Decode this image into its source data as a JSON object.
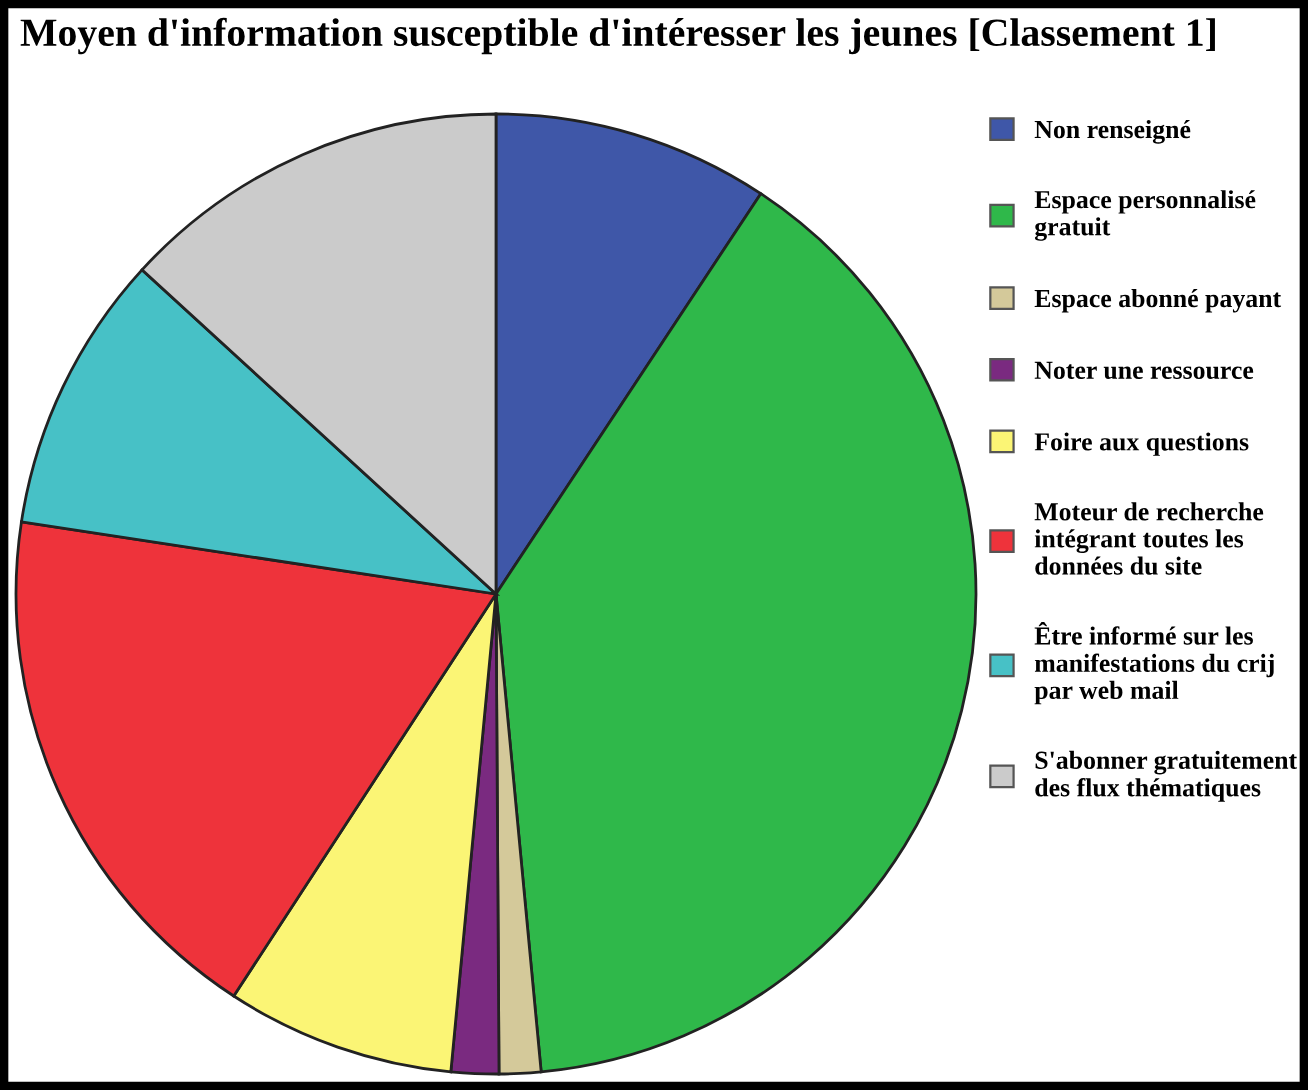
{
  "chart_data": {
    "type": "pie",
    "title": "Moyen d'information susceptible d'intéresser les jeunes [Classement 1]",
    "categories": [
      "Non renseigné",
      "Espace personnalisé gratuit",
      "Espace abonné payant",
      "Noter une ressource",
      "Foire aux questions",
      "Moteur de recherche intégrant toutes les données du site",
      "Être informé sur les manifestations du crij par web mail",
      "S'abonner gratuitement des flux thématiques"
    ],
    "values": [
      9.3,
      39.2,
      1.4,
      1.6,
      7.7,
      18.2,
      9.4,
      13.2
    ],
    "colors": [
      "#3f57a8",
      "#2fb84a",
      "#d4c99a",
      "#7a2a80",
      "#fbf575",
      "#ee333b",
      "#47c1c6",
      "#cbcbcb"
    ],
    "legend": "right"
  }
}
